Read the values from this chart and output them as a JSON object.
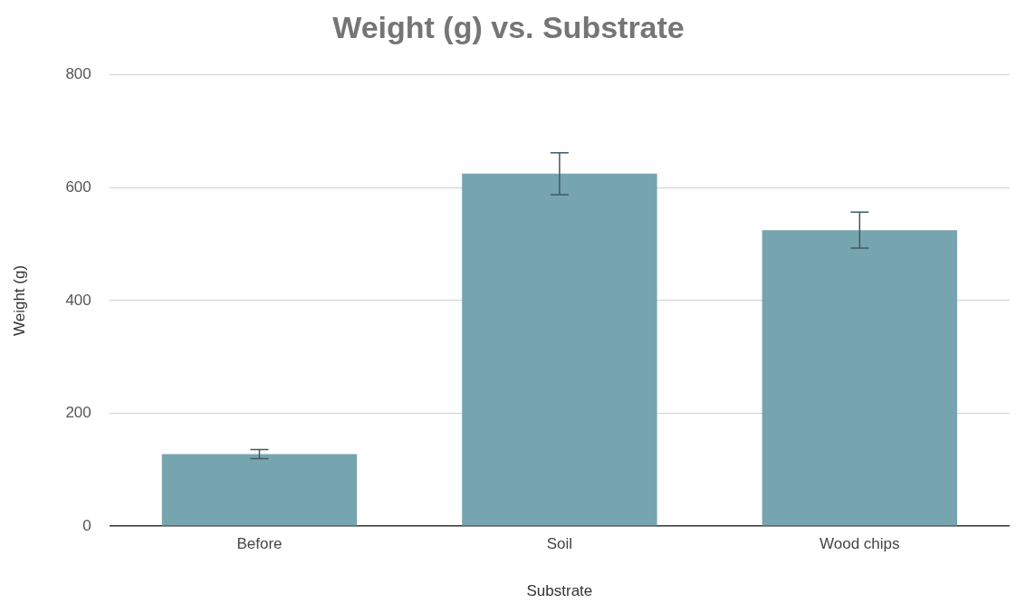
{
  "chart_data": {
    "type": "bar",
    "title": "Weight (g) vs. Substrate",
    "xlabel": "Substrate",
    "ylabel": "Weight (g)",
    "categories": [
      "Before",
      "Soil",
      "Wood chips"
    ],
    "values": [
      128,
      625,
      525
    ],
    "errors": [
      8,
      37,
      32
    ],
    "color": "#76a5af",
    "ylim": [
      0,
      800
    ],
    "yticks": [
      0,
      200,
      400,
      600,
      800
    ],
    "grid": "y",
    "legend": false
  }
}
